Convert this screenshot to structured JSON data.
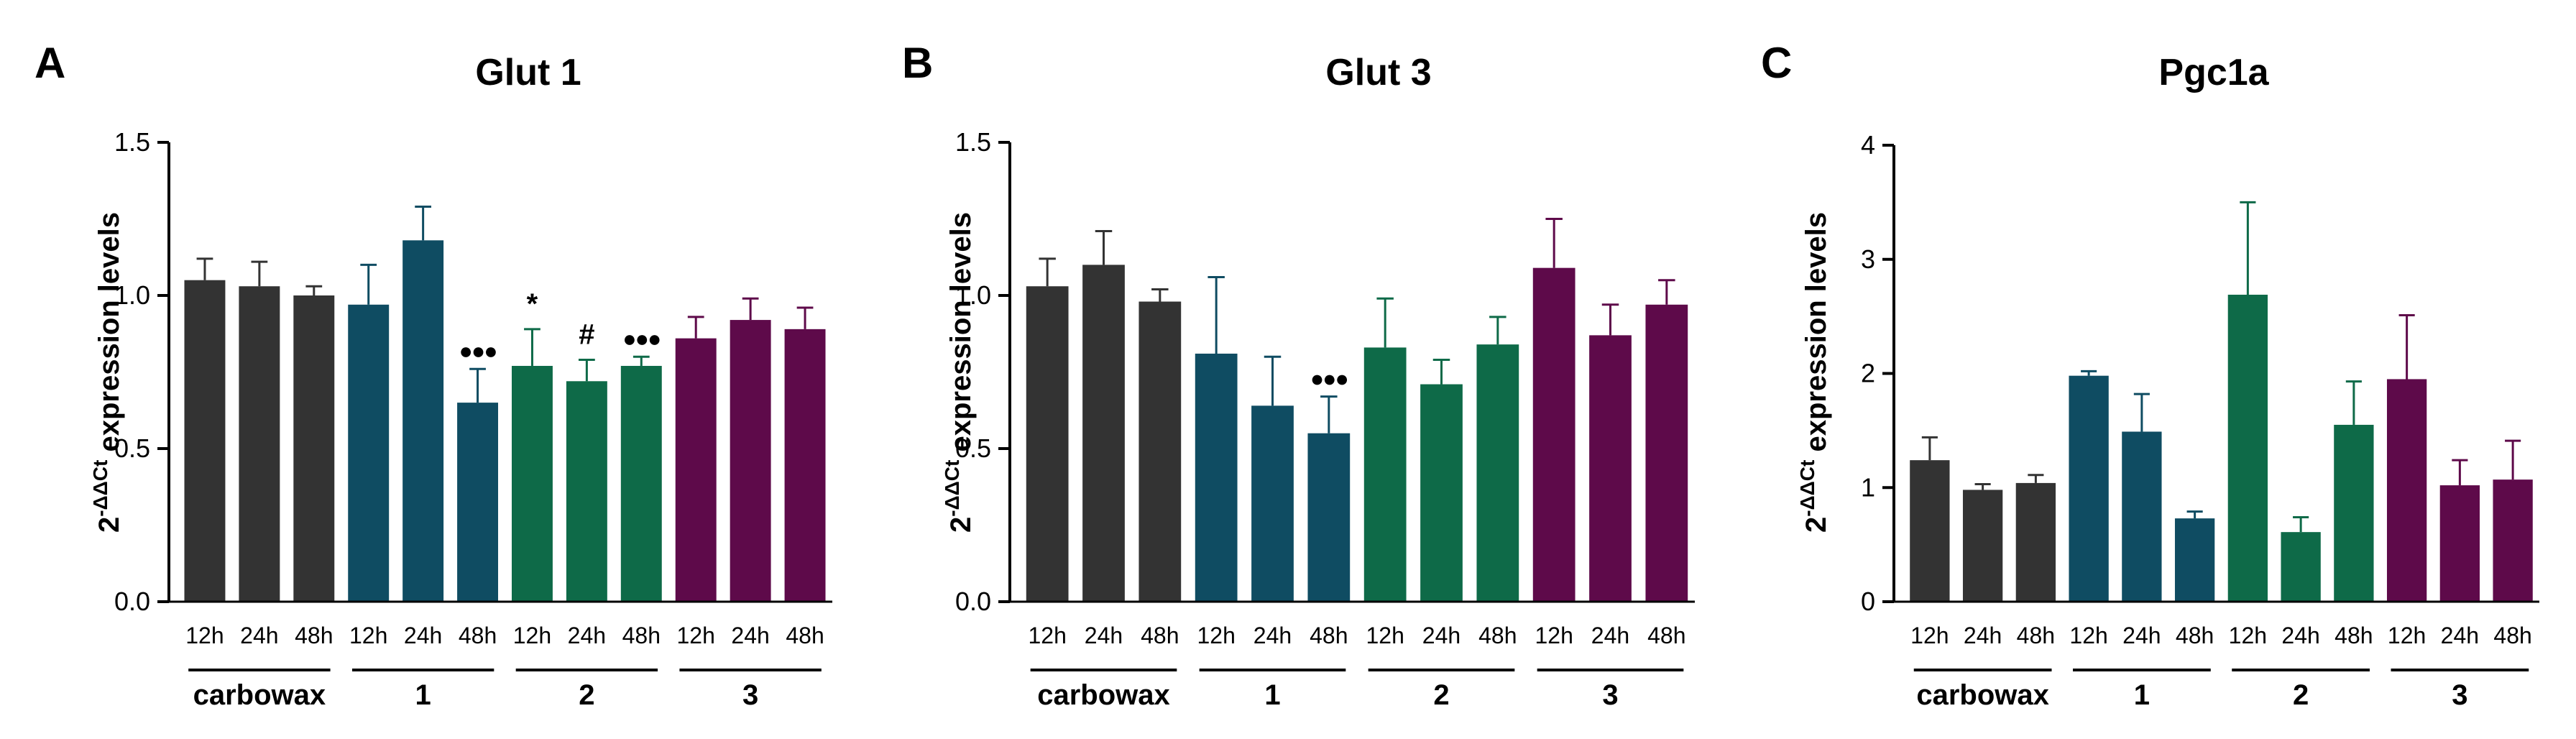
{
  "figure": {
    "panels": [
      {
        "letter": "A",
        "title": "Glut 1"
      },
      {
        "letter": "B",
        "title": "Glut 3"
      },
      {
        "letter": "C",
        "title": "Pgc1a"
      }
    ],
    "ylabel_base": "2",
    "ylabel_sup": "-ΔΔCt",
    "ylabel_rest": " expression levels"
  },
  "chart_data": [
    {
      "type": "bar",
      "title": "Glut 1",
      "ylabel": "2-ΔΔCt expression levels",
      "ylim": [
        0,
        1.5
      ],
      "yticks": [
        "0.0",
        "0.5",
        "1.0",
        "1.5"
      ],
      "ytick_values": [
        0,
        0.5,
        1.0,
        1.5
      ],
      "categories": [
        "12h",
        "24h",
        "48h",
        "12h",
        "24h",
        "48h",
        "12h",
        "24h",
        "48h",
        "12h",
        "24h",
        "48h"
      ],
      "groups": [
        "carbowax",
        "1",
        "2",
        "3"
      ],
      "group_colors": [
        "#333333",
        "#0f4c62",
        "#0e6a48",
        "#5e0a4a"
      ],
      "values": [
        1.05,
        1.03,
        1.0,
        0.97,
        1.18,
        0.65,
        0.77,
        0.72,
        0.77,
        0.86,
        0.92,
        0.89
      ],
      "errors": [
        0.07,
        0.08,
        0.03,
        0.13,
        0.11,
        0.11,
        0.12,
        0.07,
        0.03,
        0.07,
        0.07,
        0.07
      ],
      "annotations": [
        "",
        "",
        "",
        "",
        "",
        "●●●",
        "*",
        "#",
        "●●●",
        "",
        "",
        ""
      ],
      "grid": false
    },
    {
      "type": "bar",
      "title": "Glut 3",
      "ylabel": "2-ΔΔCt expression levels",
      "ylim": [
        0,
        1.5
      ],
      "yticks": [
        "0.0",
        "0.5",
        "1.0",
        "1.5"
      ],
      "ytick_values": [
        0,
        0.5,
        1.0,
        1.5
      ],
      "categories": [
        "12h",
        "24h",
        "48h",
        "12h",
        "24h",
        "48h",
        "12h",
        "24h",
        "48h",
        "12h",
        "24h",
        "48h"
      ],
      "groups": [
        "carbowax",
        "1",
        "2",
        "3"
      ],
      "group_colors": [
        "#333333",
        "#0f4c62",
        "#0e6a48",
        "#5e0a4a"
      ],
      "values": [
        1.03,
        1.1,
        0.98,
        0.81,
        0.64,
        0.55,
        0.83,
        0.71,
        0.84,
        1.09,
        0.87,
        0.97
      ],
      "errors": [
        0.09,
        0.11,
        0.04,
        0.25,
        0.16,
        0.12,
        0.16,
        0.08,
        0.09,
        0.16,
        0.1,
        0.08
      ],
      "annotations": [
        "",
        "",
        "",
        "",
        "",
        "●●●",
        "",
        "",
        "",
        "",
        "",
        ""
      ],
      "grid": false
    },
    {
      "type": "bar",
      "title": "Pgc1a",
      "ylabel": "2-ΔΔCt expression levels",
      "ylim": [
        0,
        4
      ],
      "yticks": [
        "0",
        "1",
        "2",
        "3",
        "4"
      ],
      "ytick_values": [
        0,
        1,
        2,
        3,
        4
      ],
      "categories": [
        "12h",
        "24h",
        "48h",
        "12h",
        "24h",
        "48h",
        "12h",
        "24h",
        "48h",
        "12h",
        "24h",
        "48h"
      ],
      "groups": [
        "carbowax",
        "1",
        "2",
        "3"
      ],
      "group_colors": [
        "#333333",
        "#0f4c62",
        "#0e6a48",
        "#5e0a4a"
      ],
      "values": [
        1.24,
        0.98,
        1.04,
        1.98,
        1.49,
        0.73,
        2.69,
        0.61,
        1.55,
        1.95,
        1.02,
        1.07
      ],
      "errors": [
        0.2,
        0.05,
        0.07,
        0.04,
        0.33,
        0.06,
        0.81,
        0.13,
        0.38,
        0.56,
        0.22,
        0.34
      ],
      "annotations": [
        "",
        "",
        "",
        "",
        "",
        "",
        "",
        "",
        "",
        "",
        "",
        ""
      ],
      "grid": false
    }
  ]
}
